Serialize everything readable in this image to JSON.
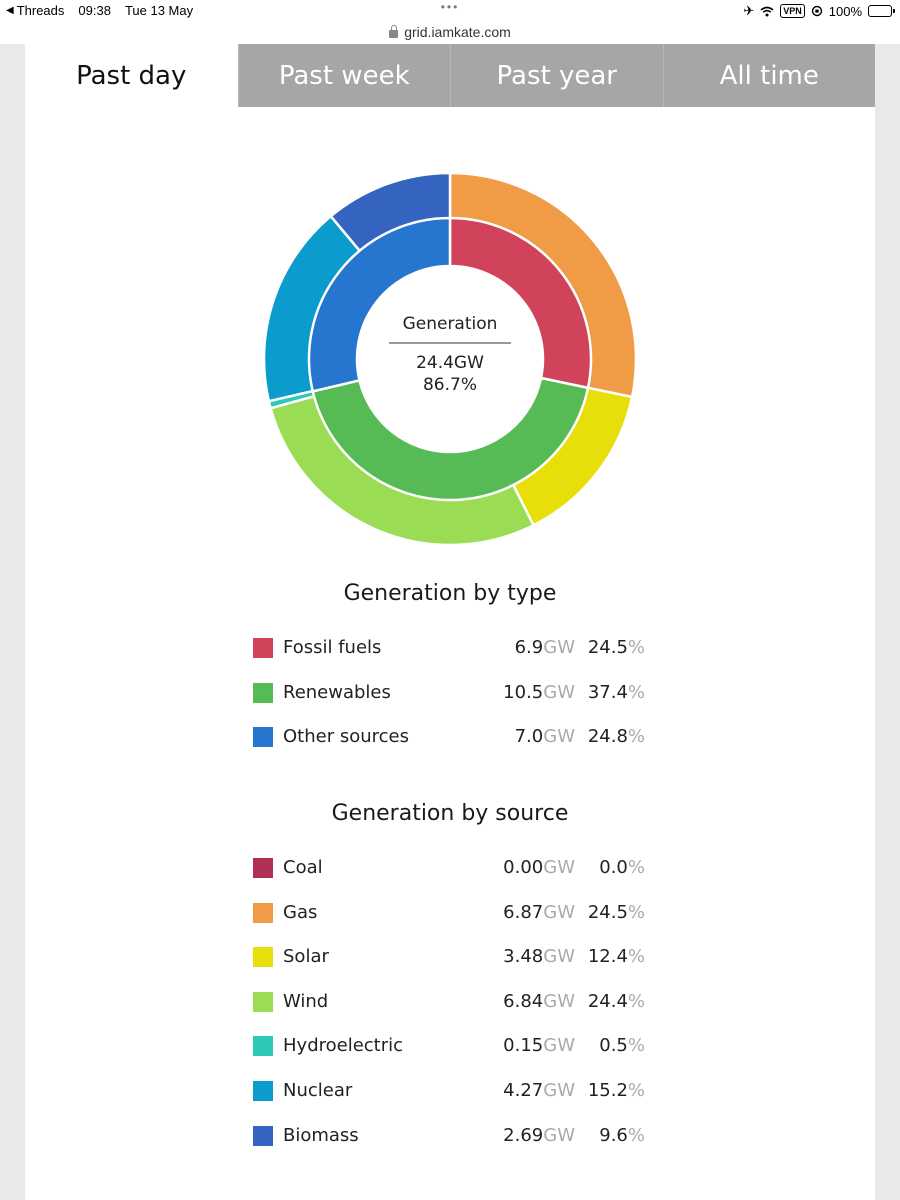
{
  "status_bar": {
    "back_app": "Threads",
    "time": "09:38",
    "date": "Tue 13 May",
    "vpn": "VPN",
    "battery": "100%"
  },
  "browser": {
    "url": "grid.iamkate.com"
  },
  "tabs": [
    {
      "label": "Past day",
      "active": true
    },
    {
      "label": "Past week",
      "active": false
    },
    {
      "label": "Past year",
      "active": false
    },
    {
      "label": "All time",
      "active": false
    }
  ],
  "center": {
    "title": "Generation",
    "value": "24.4GW",
    "percent": "86.7%"
  },
  "by_type": {
    "title": "Generation by type",
    "unit_gw": "GW",
    "unit_pct": "%",
    "items": [
      {
        "name": "Fossil fuels",
        "gw": "6.9",
        "pct": "24.5",
        "color": "#d0435a"
      },
      {
        "name": "Renewables",
        "gw": "10.5",
        "pct": "37.4",
        "color": "#56bb55"
      },
      {
        "name": "Other sources",
        "gw": "7.0",
        "pct": "24.8",
        "color": "#2675cf"
      }
    ]
  },
  "by_source": {
    "title": "Generation by source",
    "unit_gw": "GW",
    "unit_pct": "%",
    "items": [
      {
        "name": "Coal",
        "gw": "0.00",
        "pct": "0.0",
        "color": "#b03055"
      },
      {
        "name": "Gas",
        "gw": "6.87",
        "pct": "24.5",
        "color": "#f09b46"
      },
      {
        "name": "Solar",
        "gw": "3.48",
        "pct": "12.4",
        "color": "#e8de0a"
      },
      {
        "name": "Wind",
        "gw": "6.84",
        "pct": "24.4",
        "color": "#9add55"
      },
      {
        "name": "Hydroelectric",
        "gw": "0.15",
        "pct": "0.5",
        "color": "#2cc8b8"
      },
      {
        "name": "Nuclear",
        "gw": "4.27",
        "pct": "15.2",
        "color": "#0b9bcc"
      },
      {
        "name": "Biomass",
        "gw": "2.69",
        "pct": "9.6",
        "color": "#3464c0"
      }
    ]
  },
  "chart_data": {
    "type": "pie",
    "inner_ring": [
      {
        "name": "Fossil fuels",
        "value": 6.9,
        "color": "#d0435a"
      },
      {
        "name": "Renewables",
        "value": 10.5,
        "color": "#56bb55"
      },
      {
        "name": "Other sources",
        "value": 7.0,
        "color": "#2675cf"
      }
    ],
    "outer_ring": [
      {
        "name": "Coal",
        "value": 0.0,
        "color": "#b03055"
      },
      {
        "name": "Gas",
        "value": 6.87,
        "color": "#f09b46"
      },
      {
        "name": "Solar",
        "value": 3.48,
        "color": "#e8de0a"
      },
      {
        "name": "Wind",
        "value": 6.84,
        "color": "#9add55"
      },
      {
        "name": "Hydroelectric",
        "value": 0.15,
        "color": "#2cc8b8"
      },
      {
        "name": "Nuclear",
        "value": 4.27,
        "color": "#0b9bcc"
      },
      {
        "name": "Biomass",
        "value": 2.69,
        "color": "#3464c0"
      }
    ]
  }
}
